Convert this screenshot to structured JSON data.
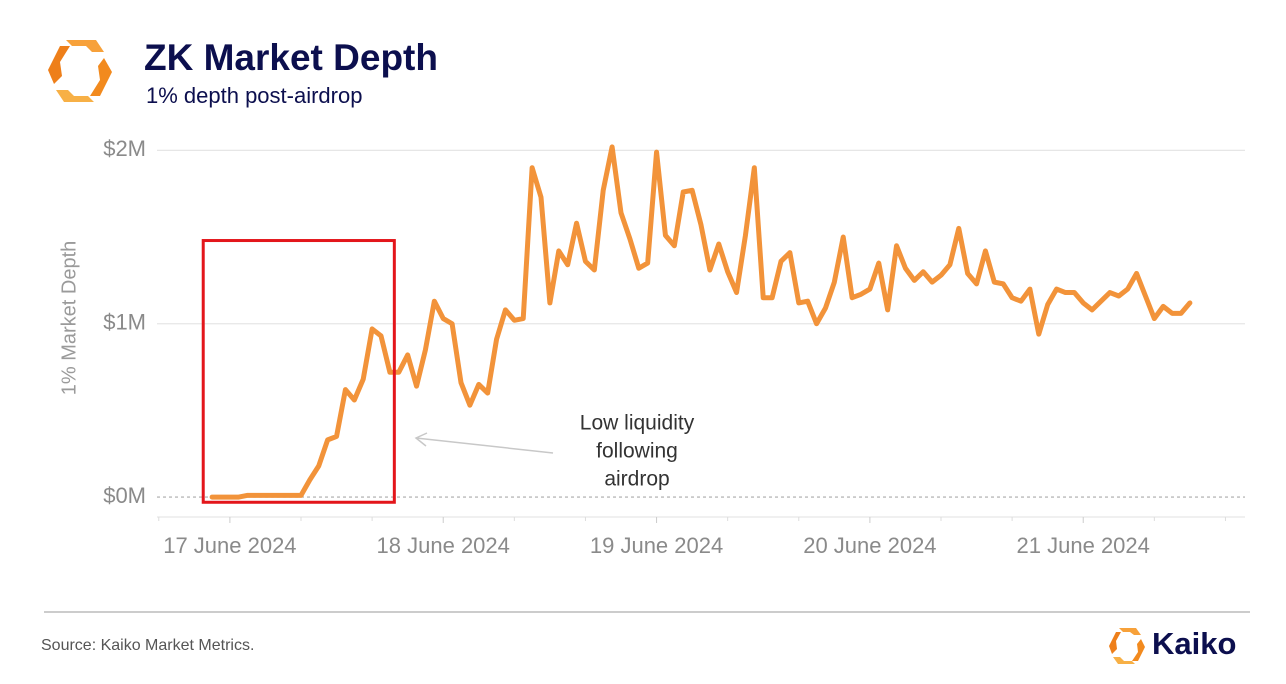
{
  "chart_data": {
    "type": "line",
    "title": "ZK Market Depth",
    "subtitle": "1% depth post-airdrop",
    "ylabel": "1% Market Depth",
    "source": "Source: Kaiko Market Metrics.",
    "brand": "Kaiko",
    "annotation": [
      "Low liquidity",
      "following",
      "airdrop"
    ],
    "color": "#f2933a",
    "values": [
      0,
      0,
      0,
      0,
      10000,
      10000,
      10000,
      10000,
      10000,
      10000,
      10000,
      100000,
      180000,
      330000,
      350000,
      620000,
      560000,
      680000,
      970000,
      930000,
      720000,
      720000,
      820000,
      640000,
      850000,
      1130000,
      1030000,
      1000000,
      660000,
      530000,
      650000,
      600000,
      910000,
      1080000,
      1020000,
      1030000,
      1900000,
      1730000,
      1120000,
      1420000,
      1340000,
      1580000,
      1360000,
      1310000,
      1770000,
      2020000,
      1640000,
      1490000,
      1320000,
      1350000,
      1990000,
      1510000,
      1450000,
      1760000,
      1770000,
      1570000,
      1310000,
      1460000,
      1300000,
      1180000,
      1510000,
      1900000,
      1150000,
      1150000,
      1360000,
      1410000,
      1120000,
      1130000,
      1000000,
      1090000,
      1240000,
      1500000,
      1150000,
      1170000,
      1200000,
      1350000,
      1080000,
      1450000,
      1320000,
      1250000,
      1300000,
      1240000,
      1280000,
      1340000,
      1550000,
      1290000,
      1230000,
      1420000,
      1240000,
      1230000,
      1150000,
      1130000,
      1200000,
      940000,
      1110000,
      1200000,
      1180000,
      1180000,
      1120000,
      1080000,
      1130000,
      1180000,
      1160000,
      1200000,
      1290000,
      1160000,
      1030000,
      1100000,
      1060000,
      1060000,
      1120000
    ],
    "xlim": [
      -6.2,
      116.2
    ],
    "xticks": [
      {
        "value": 2,
        "label": "17 June 2024"
      },
      {
        "value": 26,
        "label": "18 June 2024"
      },
      {
        "value": 50,
        "label": "19 June 2024"
      },
      {
        "value": 74,
        "label": "20 June 2024"
      },
      {
        "value": 98,
        "label": "21 June 2024"
      }
    ],
    "xticks_minor": [
      -6,
      10,
      18,
      34,
      42,
      58,
      66,
      82,
      90,
      106,
      114
    ],
    "ylim": [
      -115000,
      2060000
    ],
    "yticks": [
      {
        "value": 0,
        "label": "$0M"
      },
      {
        "value": 1000000,
        "label": "$1M"
      },
      {
        "value": 2000000,
        "label": "$2M"
      }
    ],
    "highlight": {
      "x": [
        -1,
        20.5
      ],
      "y": [
        -30000,
        1480000
      ],
      "color": "#e3161b"
    },
    "grid": true
  }
}
